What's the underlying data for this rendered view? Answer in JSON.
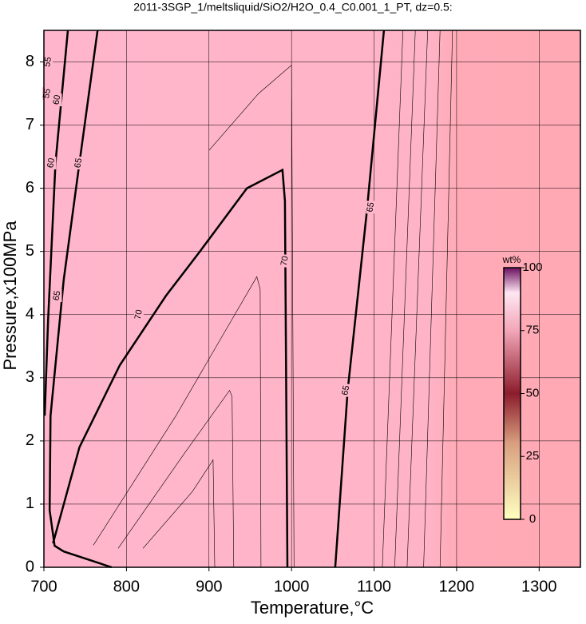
{
  "chart_data": {
    "type": "contour",
    "title": "2011-3SGP_1/meltsliquid/SiO2/H2O_0.4_C0.001_1_PT, dz=0.5:",
    "x_label": "Temperature,°C",
    "y_label": "Pressure,x100MPa",
    "xlim": [
      700,
      1350
    ],
    "ylim": [
      0,
      8.5
    ],
    "xticks": [
      700,
      800,
      900,
      1000,
      1100,
      1200,
      1300
    ],
    "yticks": [
      0,
      1,
      2,
      3,
      4,
      5,
      6,
      7,
      8
    ],
    "grid": true,
    "contours": [
      {
        "level": 60,
        "x": [
          729,
          714,
          705,
          701
        ],
        "y": [
          8.5,
          6.4,
          3.9,
          2.4
        ]
      },
      {
        "level": 65,
        "x": [
          765,
          743,
          724,
          708,
          707,
          713,
          724,
          782
        ],
        "y": [
          8.5,
          6.4,
          4.55,
          2.4,
          0.9,
          0.34,
          0.25,
          0
        ]
      },
      {
        "level": 70,
        "x": [
          711,
          743,
          792,
          848,
          889,
          946,
          989,
          992,
          995
        ],
        "y": [
          0.38,
          1.9,
          3.2,
          4.3,
          5.0,
          6.0,
          6.29,
          5.8,
          0
        ]
      },
      {
        "level": 65,
        "x": [
          1053,
          1068,
          1091,
          1112
        ],
        "y": [
          0,
          2.8,
          5.6,
          8.5
        ]
      }
    ],
    "thin_contours": [
      {
        "x": [
          760,
          860,
          958,
          962,
          963
        ],
        "y": [
          0.35,
          2.4,
          4.6,
          4.4,
          0
        ]
      },
      {
        "x": [
          790,
          870,
          925,
          928,
          930
        ],
        "y": [
          0.3,
          1.8,
          2.8,
          2.7,
          0
        ]
      },
      {
        "x": [
          820,
          880,
          905,
          907
        ],
        "y": [
          0.3,
          1.2,
          1.7,
          0
        ]
      },
      {
        "x": [
          900,
          960,
          1000,
          1003
        ],
        "y": [
          6.6,
          7.5,
          7.95,
          0
        ]
      },
      {
        "x": [
          1110,
          1135
        ],
        "y": [
          0,
          8.5
        ]
      },
      {
        "x": [
          1125,
          1150
        ],
        "y": [
          0,
          8.5
        ]
      },
      {
        "x": [
          1140,
          1165
        ],
        "y": [
          0,
          8.5
        ]
      },
      {
        "x": [
          1160,
          1180
        ],
        "y": [
          0,
          8.5
        ]
      },
      {
        "x": [
          1180,
          1195
        ],
        "y": [
          0,
          8.5
        ]
      }
    ],
    "contour_labels": [
      {
        "text": "55",
        "x": 705,
        "y": 8.0
      },
      {
        "text": "55",
        "x": 704,
        "y": 7.5
      },
      {
        "text": "60",
        "x": 716,
        "y": 7.4
      },
      {
        "text": "60",
        "x": 709,
        "y": 6.4
      },
      {
        "text": "65",
        "x": 742,
        "y": 6.4
      },
      {
        "text": "65",
        "x": 716,
        "y": 4.3
      },
      {
        "text": "70",
        "x": 815,
        "y": 4.0
      },
      {
        "text": "70",
        "x": 992,
        "y": 4.85
      },
      {
        "text": "65",
        "x": 1096,
        "y": 5.7
      },
      {
        "text": "65",
        "x": 1066,
        "y": 2.8
      }
    ],
    "colorbar": {
      "label": "wt%",
      "lim": [
        0,
        100
      ],
      "ticks": [
        0,
        25,
        50,
        75,
        100
      ]
    }
  }
}
